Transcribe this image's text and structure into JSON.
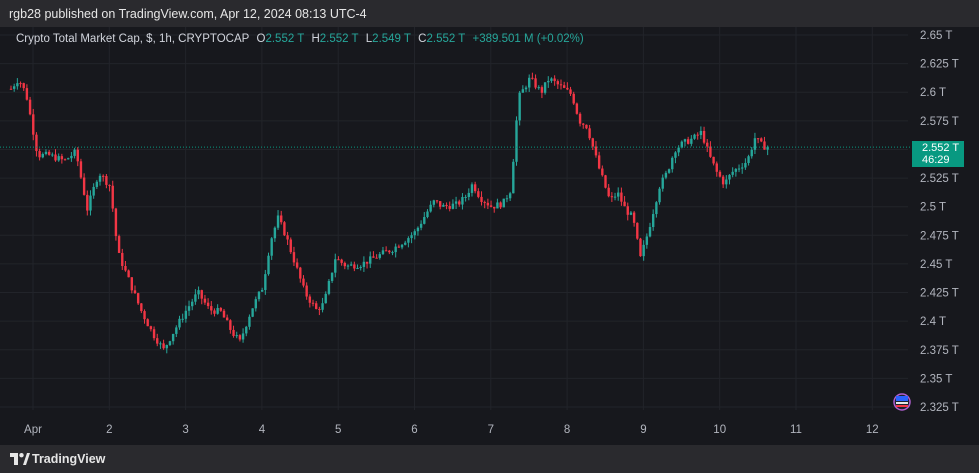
{
  "publisher_line": "rgb28 published on TradingView.com, Apr 12, 2024 08:13 UTC-4",
  "header": {
    "symbol": "Crypto Total Market Cap, $, 1h, CRYPTOCAP",
    "o_label": "O",
    "o_value": "2.552 T",
    "h_label": "H",
    "h_value": "2.552 T",
    "l_label": "L",
    "l_value": "2.549 T",
    "c_label": "C",
    "c_value": "2.552 T",
    "change": "+389.501 M (+0.02%)"
  },
  "price_tag": {
    "value": "2.552 T",
    "countdown": "46:29"
  },
  "brand": "TradingView",
  "colors": {
    "up": "#26a69a",
    "down": "#f23645",
    "background": "#17181d",
    "price_tag": "#089981"
  },
  "chart_data": {
    "type": "candlestick",
    "title": "Crypto Total Market Cap, $, 1h, CRYPTOCAP",
    "ylim": [
      2.325,
      2.65
    ],
    "y_ticks": [
      "2.65 T",
      "2.625 T",
      "2.6 T",
      "2.575 T",
      "2.55 T",
      "2.525 T",
      "2.5 T",
      "2.475 T",
      "2.45 T",
      "2.425 T",
      "2.4 T",
      "2.375 T",
      "2.35 T",
      "2.325 T"
    ],
    "x_ticks": [
      "Apr",
      "2",
      "3",
      "4",
      "5",
      "6",
      "7",
      "8",
      "9",
      "10",
      "11",
      "12"
    ],
    "last_price": 2.552,
    "close_path": [
      [
        0,
        2.603
      ],
      [
        0.1,
        2.612
      ],
      [
        0.2,
        2.598
      ],
      [
        0.35,
        2.545
      ],
      [
        0.5,
        2.545
      ],
      [
        0.7,
        2.54
      ],
      [
        0.85,
        2.548
      ],
      [
        1.0,
        2.498
      ],
      [
        1.15,
        2.53
      ],
      [
        1.3,
        2.518
      ],
      [
        1.4,
        2.46
      ],
      [
        1.55,
        2.435
      ],
      [
        1.7,
        2.41
      ],
      [
        1.85,
        2.39
      ],
      [
        2.0,
        2.375
      ],
      [
        2.15,
        2.393
      ],
      [
        2.3,
        2.41
      ],
      [
        2.45,
        2.425
      ],
      [
        2.6,
        2.41
      ],
      [
        2.75,
        2.408
      ],
      [
        2.9,
        2.39
      ],
      [
        3.0,
        2.382
      ],
      [
        3.15,
        2.41
      ],
      [
        3.3,
        2.43
      ],
      [
        3.4,
        2.47
      ],
      [
        3.5,
        2.49
      ],
      [
        3.6,
        2.475
      ],
      [
        3.75,
        2.445
      ],
      [
        3.85,
        2.425
      ],
      [
        4.0,
        2.41
      ],
      [
        4.1,
        2.415
      ],
      [
        4.25,
        2.455
      ],
      [
        4.4,
        2.448
      ],
      [
        4.6,
        2.45
      ],
      [
        4.75,
        2.455
      ],
      [
        4.9,
        2.46
      ],
      [
        5.0,
        2.463
      ],
      [
        5.15,
        2.47
      ],
      [
        5.3,
        2.478
      ],
      [
        5.45,
        2.495
      ],
      [
        5.55,
        2.505
      ],
      [
        5.65,
        2.5
      ],
      [
        5.85,
        2.502
      ],
      [
        5.95,
        2.508
      ],
      [
        6.05,
        2.52
      ],
      [
        6.15,
        2.508
      ],
      [
        6.3,
        2.5
      ],
      [
        6.45,
        2.503
      ],
      [
        6.55,
        2.515
      ],
      [
        6.65,
        2.595
      ],
      [
        6.8,
        2.612
      ],
      [
        6.95,
        2.6
      ],
      [
        7.05,
        2.612
      ],
      [
        7.2,
        2.605
      ],
      [
        7.35,
        2.598
      ],
      [
        7.45,
        2.575
      ],
      [
        7.55,
        2.57
      ],
      [
        7.7,
        2.535
      ],
      [
        7.85,
        2.505
      ],
      [
        7.95,
        2.512
      ],
      [
        8.05,
        2.498
      ],
      [
        8.15,
        2.49
      ],
      [
        8.25,
        2.455
      ],
      [
        8.35,
        2.478
      ],
      [
        8.5,
        2.518
      ],
      [
        8.6,
        2.53
      ],
      [
        8.7,
        2.55
      ],
      [
        8.8,
        2.555
      ],
      [
        8.95,
        2.56
      ],
      [
        9.05,
        2.565
      ],
      [
        9.15,
        2.545
      ],
      [
        9.25,
        2.53
      ],
      [
        9.35,
        2.52
      ],
      [
        9.45,
        2.53
      ],
      [
        9.55,
        2.535
      ],
      [
        9.65,
        2.54
      ],
      [
        9.75,
        2.56
      ],
      [
        9.85,
        2.553
      ],
      [
        9.95,
        2.552
      ]
    ]
  }
}
